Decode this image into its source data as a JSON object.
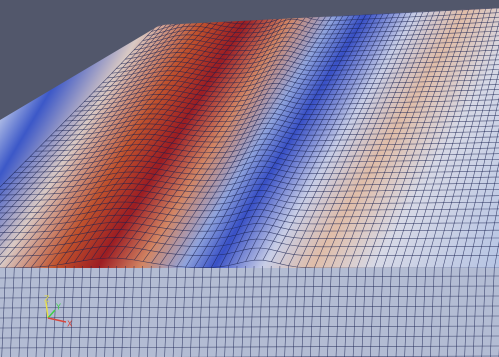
{
  "orientation_axes": {
    "labels": [
      "Z",
      "Y",
      "X"
    ]
  }
}
